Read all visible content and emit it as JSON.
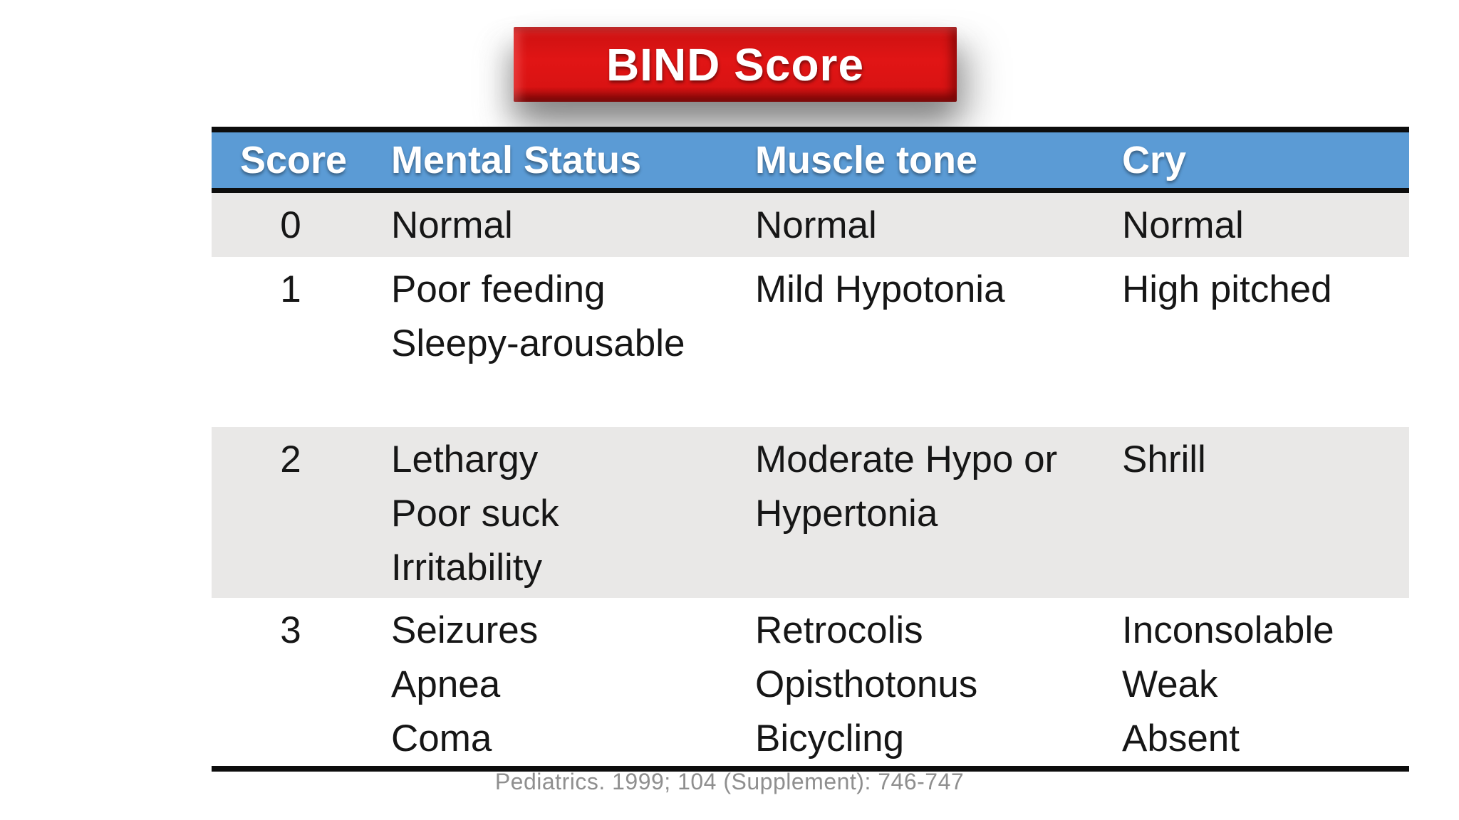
{
  "title": {
    "label": "BIND Score"
  },
  "colors": {
    "banner_red": "#d91313",
    "banner_red_dark": "#8f0909",
    "header_blue": "#5b9bd5",
    "row_gray": "#e9e8e7",
    "border_black": "#0d0d0d",
    "body_text": "#161616",
    "citation_gray": "#8f8f8f"
  },
  "table": {
    "headers": [
      "Score",
      "Mental Status",
      "Muscle tone",
      "Cry"
    ],
    "rows": [
      {
        "score": "0",
        "mental_status": "Normal",
        "muscle_tone": "Normal",
        "cry": "Normal"
      },
      {
        "score": "1",
        "mental_status": "Poor feeding\nSleepy-arousable",
        "muscle_tone": "Mild Hypotonia",
        "cry": "High pitched"
      },
      {
        "score": "2",
        "mental_status": "Lethargy\nPoor suck\nIrritability",
        "muscle_tone": "Moderate Hypo or\nHypertonia",
        "cry": "Shrill"
      },
      {
        "score": "3",
        "mental_status": "Seizures\nApnea\nComa",
        "muscle_tone": "Retrocolis\nOpisthotonus\nBicycling",
        "cry": "Inconsolable\nWeak\nAbsent"
      }
    ]
  },
  "citation": "Pediatrics. 1999; 104 (Supplement): 746-747"
}
